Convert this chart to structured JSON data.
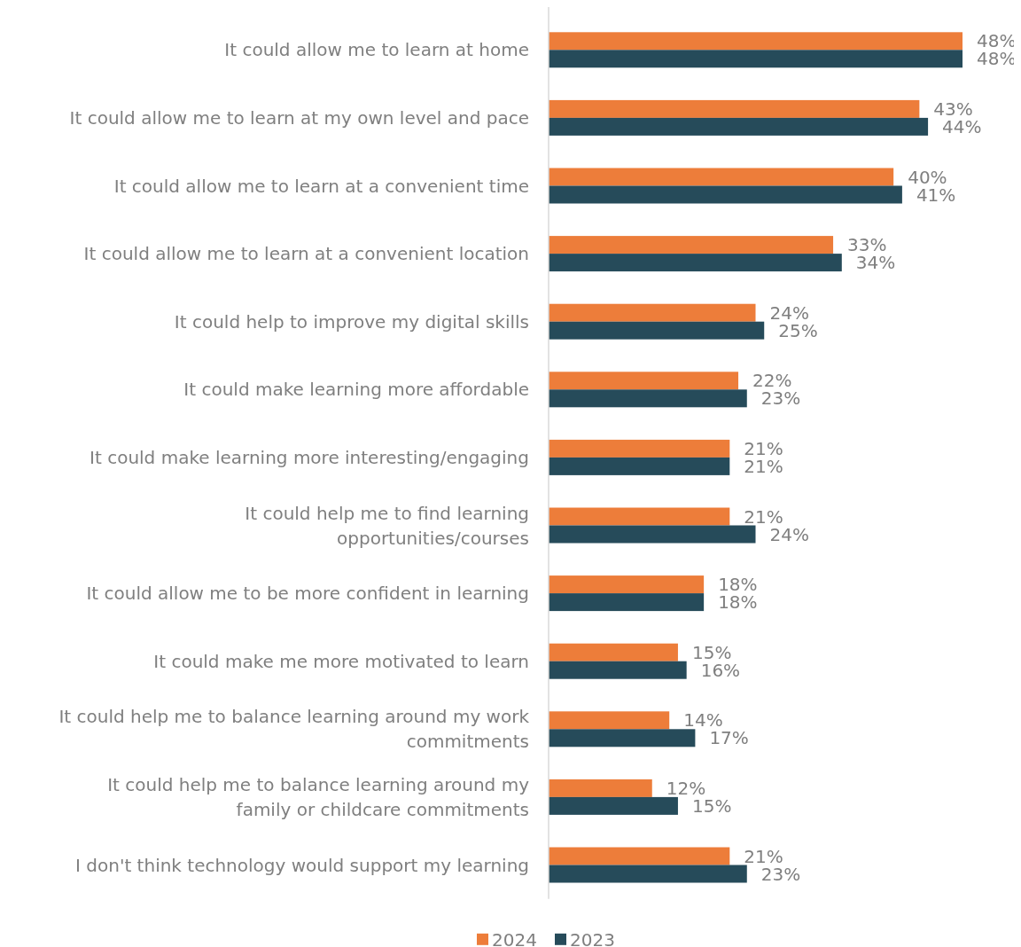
{
  "chart_data": {
    "type": "bar",
    "orientation": "horizontal",
    "legend": "bottom",
    "categories": [
      "It could allow me to learn at home",
      "It could allow me to learn at my own level and pace",
      "It could allow me to learn at a convenient time",
      "It could allow me to learn at a convenient location",
      "It could help to improve my digital skills",
      "It could make learning more affordable",
      "It could make learning more interesting/engaging",
      "It could help me to find learning opportunities/courses",
      "It could allow me to be more confident in learning",
      "It could make me more motivated to learn",
      "It could help me to balance learning around my work commitments",
      "It could help me to balance learning around my family or childcare commitments",
      "I don't think technology would support my learning"
    ],
    "series": [
      {
        "name": "2024",
        "color": "#ed7d3a",
        "values": [
          48,
          43,
          40,
          33,
          24,
          22,
          21,
          21,
          18,
          15,
          14,
          12,
          21
        ],
        "value_labels": [
          "48%",
          "43%",
          "40%",
          "33%",
          "24%",
          "22%",
          "21%",
          "21%",
          "18%",
          "15%",
          "14%",
          "12%",
          "21%"
        ]
      },
      {
        "name": "2023",
        "color": "#264b5a",
        "values": [
          48,
          44,
          41,
          34,
          25,
          23,
          21,
          24,
          18,
          16,
          17,
          15,
          23
        ],
        "value_labels": [
          "48%",
          "44%",
          "41%",
          "34%",
          "25%",
          "23%",
          "21%",
          "24%",
          "18%",
          "16%",
          "17%",
          "15%",
          "23%"
        ]
      }
    ]
  }
}
